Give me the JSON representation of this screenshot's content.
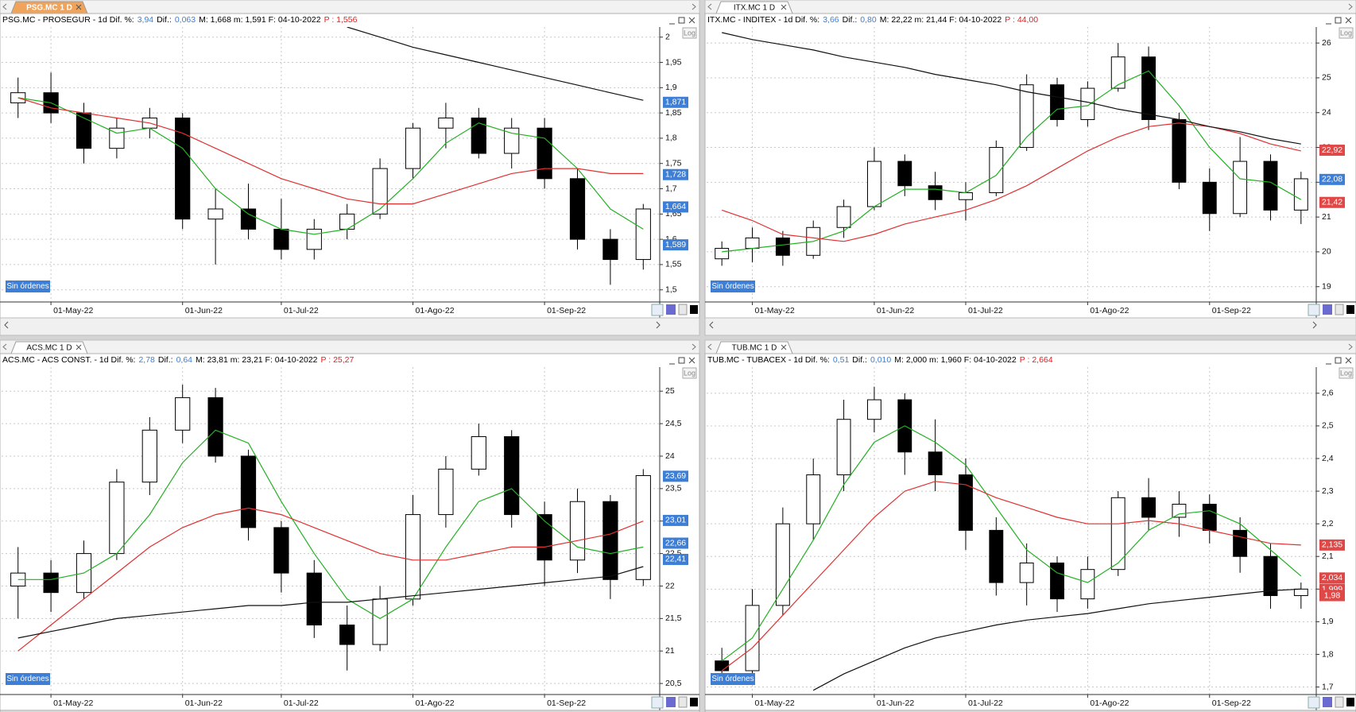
{
  "chart_data": [
    {
      "type": "candlestick",
      "tab": "PSG.MC 1 D",
      "active": true,
      "header": [
        "PSG.MC - PROSEGUR -  1d  Dif. %:",
        "3,94",
        "Dif.:",
        "0,063",
        "M: 1,668  m: 1,591  F: 04-10-2022",
        "P : 1,556"
      ],
      "header_colors": [
        "#000000",
        "#3d7fd6",
        "#000000",
        "#3d7fd6",
        "#000000",
        "#e02020"
      ],
      "badge": "Sin órdenes",
      "log_label": "Log",
      "categories": [
        null,
        "01-May-22",
        null,
        null,
        null,
        "01-Jun-22",
        null,
        null,
        "01-Jul-22",
        null,
        null,
        null,
        "01-Ago-22",
        null,
        null,
        null,
        "01-Sep-22",
        null,
        null,
        null
      ],
      "open": [
        1.87,
        1.89,
        1.85,
        1.78,
        1.82,
        1.84,
        1.64,
        1.66,
        1.62,
        1.58,
        1.62,
        1.65,
        1.74,
        1.82,
        1.84,
        1.77,
        1.82,
        1.72,
        1.6,
        1.56
      ],
      "high": [
        1.92,
        1.93,
        1.87,
        1.84,
        1.86,
        1.85,
        1.7,
        1.71,
        1.68,
        1.64,
        1.67,
        1.76,
        1.83,
        1.87,
        1.86,
        1.84,
        1.84,
        1.74,
        1.62,
        1.67
      ],
      "low": [
        1.84,
        1.83,
        1.75,
        1.76,
        1.8,
        1.62,
        1.55,
        1.6,
        1.56,
        1.56,
        1.6,
        1.64,
        1.72,
        1.78,
        1.76,
        1.74,
        1.7,
        1.58,
        1.51,
        1.54
      ],
      "close": [
        1.89,
        1.85,
        1.78,
        1.82,
        1.84,
        1.64,
        1.66,
        1.62,
        1.58,
        1.62,
        1.65,
        1.74,
        1.82,
        1.84,
        1.77,
        1.82,
        1.72,
        1.6,
        1.56,
        1.66
      ],
      "series": [
        {
          "color": "#22b022",
          "values": [
            1.88,
            1.87,
            1.84,
            1.81,
            1.82,
            1.78,
            1.7,
            1.65,
            1.62,
            1.61,
            1.62,
            1.66,
            1.72,
            1.79,
            1.83,
            1.81,
            1.8,
            1.74,
            1.66,
            1.62
          ]
        },
        {
          "color": "#e03030",
          "values": [
            1.88,
            1.86,
            1.85,
            1.84,
            1.83,
            1.81,
            1.78,
            1.75,
            1.72,
            1.7,
            1.68,
            1.67,
            1.67,
            1.69,
            1.71,
            1.73,
            1.74,
            1.74,
            1.73,
            1.73
          ]
        },
        {
          "color": "#111111",
          "values": [
            null,
            null,
            null,
            null,
            null,
            null,
            null,
            null,
            null,
            null,
            2.02,
            2.0,
            1.98,
            1.965,
            1.95,
            1.935,
            1.92,
            1.905,
            1.89,
            1.875
          ]
        }
      ],
      "ylim": [
        1.476,
        2.02
      ],
      "yticks": [
        {
          "value": 1.5,
          "label": "1,5"
        },
        {
          "value": 1.55,
          "label": "1,55"
        },
        {
          "value": 1.6,
          "label": "1,6"
        },
        {
          "value": 1.65,
          "label": "1,65"
        },
        {
          "value": 1.7,
          "label": "1,7"
        },
        {
          "value": 1.75,
          "label": "1,75"
        },
        {
          "value": 1.8,
          "label": "1,8"
        },
        {
          "value": 1.85,
          "label": "1,85"
        },
        {
          "value": 1.9,
          "label": "1,9"
        },
        {
          "value": 1.95,
          "label": "1,95"
        },
        2
      ],
      "price_tags": [
        {
          "value": 1.871,
          "label": "1,871",
          "color": "#3d7fd6"
        },
        {
          "value": 1.728,
          "label": "1,728",
          "color": "#3d7fd6"
        },
        {
          "value": 1.664,
          "label": "1,664",
          "color": "#3d7fd6"
        },
        {
          "value": 1.589,
          "label": "1,589",
          "color": "#3d7fd6"
        }
      ]
    },
    {
      "type": "candlestick",
      "tab": "ITX.MC 1 D",
      "active": false,
      "header": [
        "ITX.MC - INDITEX -  1d  Dif. %:",
        "3,66",
        "Dif.:",
        "0,80",
        "M: 22,22  m: 21,44  F: 04-10-2022",
        "P : 44,00"
      ],
      "header_colors": [
        "#000000",
        "#3d7fd6",
        "#000000",
        "#3d7fd6",
        "#000000",
        "#e02020"
      ],
      "badge": "Sin órdenes",
      "log_label": "Log",
      "categories": [
        null,
        "01-May-22",
        null,
        null,
        null,
        "01-Jun-22",
        null,
        null,
        "01-Jul-22",
        null,
        null,
        null,
        "01-Ago-22",
        null,
        null,
        null,
        "01-Sep-22",
        null,
        null,
        null
      ],
      "open": [
        19.8,
        20.1,
        20.4,
        19.9,
        20.7,
        21.3,
        22.6,
        21.9,
        21.5,
        21.7,
        23.0,
        24.8,
        23.8,
        24.7,
        25.6,
        23.8,
        22.0,
        21.1,
        22.6,
        21.2
      ],
      "high": [
        20.3,
        20.7,
        20.6,
        20.9,
        21.5,
        23.0,
        22.8,
        22.3,
        22.0,
        23.2,
        25.1,
        25.0,
        24.9,
        26.0,
        25.9,
        24.0,
        22.4,
        23.3,
        22.8,
        22.3
      ],
      "low": [
        19.6,
        19.7,
        19.6,
        19.8,
        20.4,
        21.2,
        21.6,
        21.2,
        20.9,
        21.6,
        22.9,
        23.6,
        23.6,
        24.6,
        23.5,
        21.8,
        20.6,
        21.0,
        20.9,
        20.8
      ],
      "close": [
        20.1,
        20.4,
        19.9,
        20.7,
        21.3,
        22.6,
        21.9,
        21.5,
        21.7,
        23.0,
        24.8,
        23.8,
        24.7,
        25.6,
        23.8,
        22.0,
        21.1,
        22.6,
        21.2,
        22.1
      ],
      "series": [
        {
          "color": "#22b022",
          "values": [
            20.0,
            20.1,
            20.2,
            20.3,
            20.6,
            21.3,
            21.8,
            21.8,
            21.7,
            22.2,
            23.3,
            24.1,
            24.2,
            24.8,
            25.2,
            24.2,
            23.0,
            22.1,
            22.0,
            21.5
          ]
        },
        {
          "color": "#e03030",
          "values": [
            21.2,
            20.9,
            20.5,
            20.4,
            20.3,
            20.5,
            20.8,
            21.0,
            21.2,
            21.5,
            21.9,
            22.4,
            22.9,
            23.3,
            23.6,
            23.7,
            23.6,
            23.4,
            23.1,
            22.9
          ]
        },
        {
          "color": "#111111",
          "values": [
            26.3,
            26.1,
            25.95,
            25.8,
            25.6,
            25.45,
            25.3,
            25.1,
            24.95,
            24.8,
            24.6,
            24.45,
            24.3,
            24.1,
            23.95,
            23.8,
            23.6,
            23.45,
            23.25,
            23.1
          ]
        }
      ],
      "ylim": [
        18.56,
        26.46
      ],
      "yticks": [
        19,
        20,
        21,
        22,
        23,
        24,
        25,
        26
      ],
      "price_tags": [
        {
          "value": 22.92,
          "label": "22,92",
          "color": "#e04848"
        },
        {
          "value": 22.08,
          "label": "22,08",
          "color": "#3d7fd6"
        },
        {
          "value": 21.42,
          "label": "21,42",
          "color": "#e04848"
        }
      ]
    },
    {
      "type": "candlestick",
      "tab": "ACS.MC 1 D",
      "active": false,
      "header": [
        "ACS.MC - ACS CONST. -  1d  Dif. %:",
        "2,78",
        "Dif.:",
        "0,64",
        "M: 23,81  m: 23,21  F: 04-10-2022",
        "P : 25,27"
      ],
      "header_colors": [
        "#000000",
        "#3d7fd6",
        "#000000",
        "#3d7fd6",
        "#000000",
        "#e02020"
      ],
      "badge": "Sin órdenes",
      "log_label": "Log",
      "categories": [
        null,
        "01-May-22",
        null,
        null,
        null,
        "01-Jun-22",
        null,
        null,
        "01-Jul-22",
        null,
        null,
        null,
        "01-Ago-22",
        null,
        null,
        null,
        "01-Sep-22",
        null,
        null,
        null
      ],
      "open": [
        22.0,
        22.2,
        21.9,
        22.5,
        23.6,
        24.4,
        24.9,
        24.0,
        22.9,
        22.2,
        21.4,
        21.1,
        21.8,
        23.1,
        23.8,
        24.3,
        23.1,
        22.4,
        23.3,
        22.1
      ],
      "high": [
        22.6,
        22.4,
        22.7,
        23.8,
        24.6,
        25.1,
        25.05,
        24.1,
        23.0,
        22.4,
        21.7,
        22.0,
        23.4,
        24.0,
        24.5,
        24.4,
        23.3,
        23.5,
        23.4,
        23.8
      ],
      "low": [
        21.5,
        21.6,
        21.8,
        22.4,
        23.4,
        24.2,
        23.9,
        22.7,
        21.9,
        21.2,
        20.7,
        21.0,
        21.7,
        22.9,
        23.7,
        22.9,
        22.0,
        22.2,
        21.8,
        22.0
      ],
      "close": [
        22.2,
        21.9,
        22.5,
        23.6,
        24.4,
        24.9,
        24.0,
        22.9,
        22.2,
        21.4,
        21.1,
        21.8,
        23.1,
        23.8,
        24.3,
        23.1,
        22.4,
        23.3,
        22.1,
        23.7
      ],
      "series": [
        {
          "color": "#22b022",
          "values": [
            22.1,
            22.1,
            22.2,
            22.5,
            23.1,
            23.9,
            24.4,
            24.2,
            23.3,
            22.5,
            21.8,
            21.5,
            21.8,
            22.6,
            23.3,
            23.5,
            23.0,
            22.6,
            22.5,
            22.6
          ]
        },
        {
          "color": "#e03030",
          "values": [
            21.0,
            21.4,
            21.8,
            22.2,
            22.6,
            22.9,
            23.1,
            23.2,
            23.1,
            22.9,
            22.7,
            22.5,
            22.4,
            22.4,
            22.5,
            22.6,
            22.6,
            22.7,
            22.8,
            23.0
          ]
        },
        {
          "color": "#111111",
          "values": [
            21.2,
            21.3,
            21.4,
            21.5,
            21.55,
            21.6,
            21.65,
            21.7,
            21.7,
            21.75,
            21.75,
            21.8,
            21.85,
            21.9,
            21.95,
            22.0,
            22.05,
            22.1,
            22.15,
            22.3
          ]
        }
      ],
      "ylim": [
        20.33,
        25.37
      ],
      "yticks": [
        {
          "value": 20.5,
          "label": "20,5"
        },
        21,
        {
          "value": 21.5,
          "label": "21,5"
        },
        22,
        {
          "value": 22.5,
          "label": "22,5"
        },
        23,
        {
          "value": 23.5,
          "label": "23,5"
        },
        24,
        {
          "value": 24.5,
          "label": "24,5"
        },
        25
      ],
      "price_tags": [
        {
          "value": 23.69,
          "label": "23,69",
          "color": "#3d7fd6"
        },
        {
          "value": 23.01,
          "label": "23,01",
          "color": "#3d7fd6"
        },
        {
          "value": 22.66,
          "label": "22,66",
          "color": "#3d7fd6"
        },
        {
          "value": 22.41,
          "label": "22,41",
          "color": "#3d7fd6"
        }
      ]
    },
    {
      "type": "candlestick",
      "tab": "TUB.MC 1 D",
      "active": false,
      "header": [
        "TUB.MC - TUBACEX -  1d  Dif. %:",
        "0,51",
        "Dif.:",
        "0,010",
        "M: 2,000  m: 1,960  F: 04-10-2022",
        "P : 2,664"
      ],
      "header_colors": [
        "#000000",
        "#3d7fd6",
        "#000000",
        "#3d7fd6",
        "#000000",
        "#e02020"
      ],
      "badge": "Sin órdenes",
      "log_label": "Log",
      "categories": [
        null,
        "01-May-22",
        null,
        null,
        null,
        "01-Jun-22",
        null,
        null,
        "01-Jul-22",
        null,
        null,
        null,
        "01-Ago-22",
        null,
        null,
        null,
        "01-Sep-22",
        null,
        null,
        null
      ],
      "open": [
        1.78,
        1.75,
        1.95,
        2.2,
        2.35,
        2.52,
        2.58,
        2.42,
        2.35,
        2.18,
        2.02,
        2.08,
        1.97,
        2.06,
        2.28,
        2.22,
        2.26,
        2.18,
        2.1,
        1.98
      ],
      "high": [
        1.82,
        2.0,
        2.25,
        2.4,
        2.58,
        2.62,
        2.6,
        2.52,
        2.4,
        2.22,
        2.14,
        2.1,
        2.1,
        2.3,
        2.34,
        2.3,
        2.29,
        2.22,
        2.14,
        2.02
      ],
      "low": [
        1.72,
        1.74,
        1.92,
        2.15,
        2.3,
        2.48,
        2.35,
        2.3,
        2.12,
        1.98,
        1.95,
        1.93,
        1.94,
        2.04,
        2.18,
        2.16,
        2.14,
        2.05,
        1.94,
        1.94
      ],
      "close": [
        1.75,
        1.95,
        2.2,
        2.35,
        2.52,
        2.58,
        2.42,
        2.35,
        2.18,
        2.02,
        2.08,
        1.97,
        2.06,
        2.28,
        2.22,
        2.26,
        2.18,
        2.1,
        1.98,
        2.0
      ],
      "series": [
        {
          "color": "#22b022",
          "values": [
            1.78,
            1.85,
            2.0,
            2.15,
            2.32,
            2.45,
            2.5,
            2.45,
            2.38,
            2.25,
            2.12,
            2.05,
            2.02,
            2.08,
            2.18,
            2.23,
            2.24,
            2.2,
            2.12,
            2.04
          ]
        },
        {
          "color": "#e03030",
          "values": [
            1.75,
            1.82,
            1.92,
            2.02,
            2.12,
            2.22,
            2.3,
            2.33,
            2.32,
            2.28,
            2.25,
            2.22,
            2.2,
            2.2,
            2.21,
            2.2,
            2.18,
            2.16,
            2.14,
            2.135
          ]
        },
        {
          "color": "#111111",
          "values": [
            null,
            null,
            null,
            1.69,
            1.74,
            1.78,
            1.82,
            1.85,
            1.87,
            1.89,
            1.905,
            1.915,
            1.925,
            1.94,
            1.955,
            1.965,
            1.975,
            1.985,
            1.995,
            2.0
          ]
        }
      ],
      "ylim": [
        1.677,
        2.68
      ],
      "yticks": [
        {
          "value": 1.7,
          "label": "1,7"
        },
        {
          "value": 1.8,
          "label": "1,8"
        },
        {
          "value": 1.9,
          "label": "1,9"
        },
        2,
        {
          "value": 2.1,
          "label": "2,1"
        },
        {
          "value": 2.2,
          "label": "2,2"
        },
        {
          "value": 2.3,
          "label": "2,3"
        },
        {
          "value": 2.4,
          "label": "2,4"
        },
        {
          "value": 2.5,
          "label": "2,5"
        },
        {
          "value": 2.6,
          "label": "2,6"
        }
      ],
      "price_tags": [
        {
          "value": 2.135,
          "label": "2,135",
          "color": "#e04848"
        },
        {
          "value": 2.034,
          "label": "2,034",
          "color": "#e04848"
        },
        {
          "value": 1.999,
          "label": "1,999",
          "color": "#e04848"
        },
        {
          "value": 1.98,
          "label": "1,98",
          "color": "#e04848"
        }
      ]
    }
  ]
}
